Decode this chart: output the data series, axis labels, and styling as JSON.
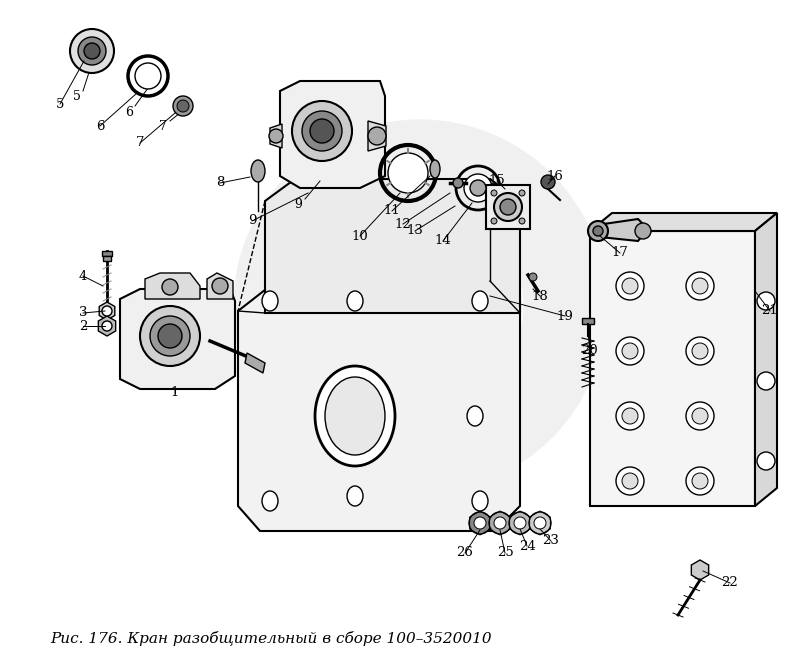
{
  "caption": "Рис. 176. Кран разобщительный в сборе 100–3520010",
  "caption_fontsize": 11,
  "bg_color": "#ffffff",
  "fig_width": 8.0,
  "fig_height": 6.71,
  "dpi": 100
}
